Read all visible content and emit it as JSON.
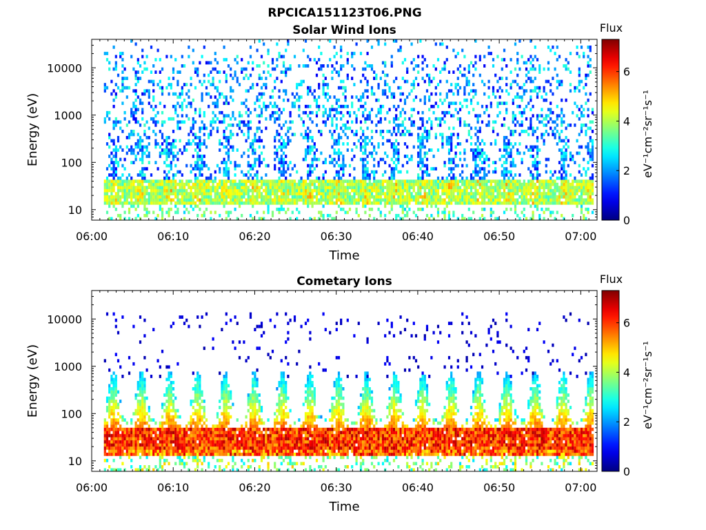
{
  "figure_title": "RPCICA151123T06.PNG",
  "chart_data": [
    {
      "type": "heatmap",
      "title": "Solar Wind Ions",
      "xlabel": "Time",
      "ylabel": "Energy (eV)",
      "xticks": [
        "06:00",
        "06:10",
        "06:20",
        "06:30",
        "06:40",
        "06:50",
        "07:00"
      ],
      "xlim_minutes": [
        0,
        62
      ],
      "data_start_minute": 1.5,
      "yscale": "log",
      "yticks": [
        10,
        100,
        1000,
        10000
      ],
      "ylim": [
        6,
        40000
      ],
      "colorbar": {
        "label": "eV⁻¹cm⁻²sr⁻¹s⁻¹",
        "title": "Flux",
        "range": [
          0,
          7.3
        ],
        "ticks": [
          0,
          2,
          4,
          6
        ],
        "colormap": "jet"
      },
      "pattern": "sparse blue/cyan scatter from ~10 to ~20000 eV; persistent band of flux 3-5.5 (green/yellow, peaks orange) at ~15-40 eV; blue vertical streaks up to ~300 eV at sweep starts"
    },
    {
      "type": "heatmap",
      "title": "Cometary Ions",
      "xlabel": "Time",
      "ylabel": "Energy (eV)",
      "xticks": [
        "06:00",
        "06:10",
        "06:20",
        "06:30",
        "06:40",
        "06:50",
        "07:00"
      ],
      "xlim_minutes": [
        0,
        62
      ],
      "data_start_minute": 1.5,
      "yscale": "log",
      "yticks": [
        10,
        100,
        1000,
        10000
      ],
      "ylim": [
        6,
        40000
      ],
      "colorbar": {
        "label": "eV⁻¹cm⁻²sr⁻¹s⁻¹",
        "title": "Flux",
        "range": [
          0,
          7.3
        ],
        "ticks": [
          0,
          2,
          4,
          6
        ],
        "colormap": "jet"
      },
      "pattern": "intense band of flux 5.5-7 (red/orange) at ~15-45 eV; periodic plumes up to ~500 eV roughly every 3.5 minutes; sparse dark blue dots at high energy"
    }
  ]
}
